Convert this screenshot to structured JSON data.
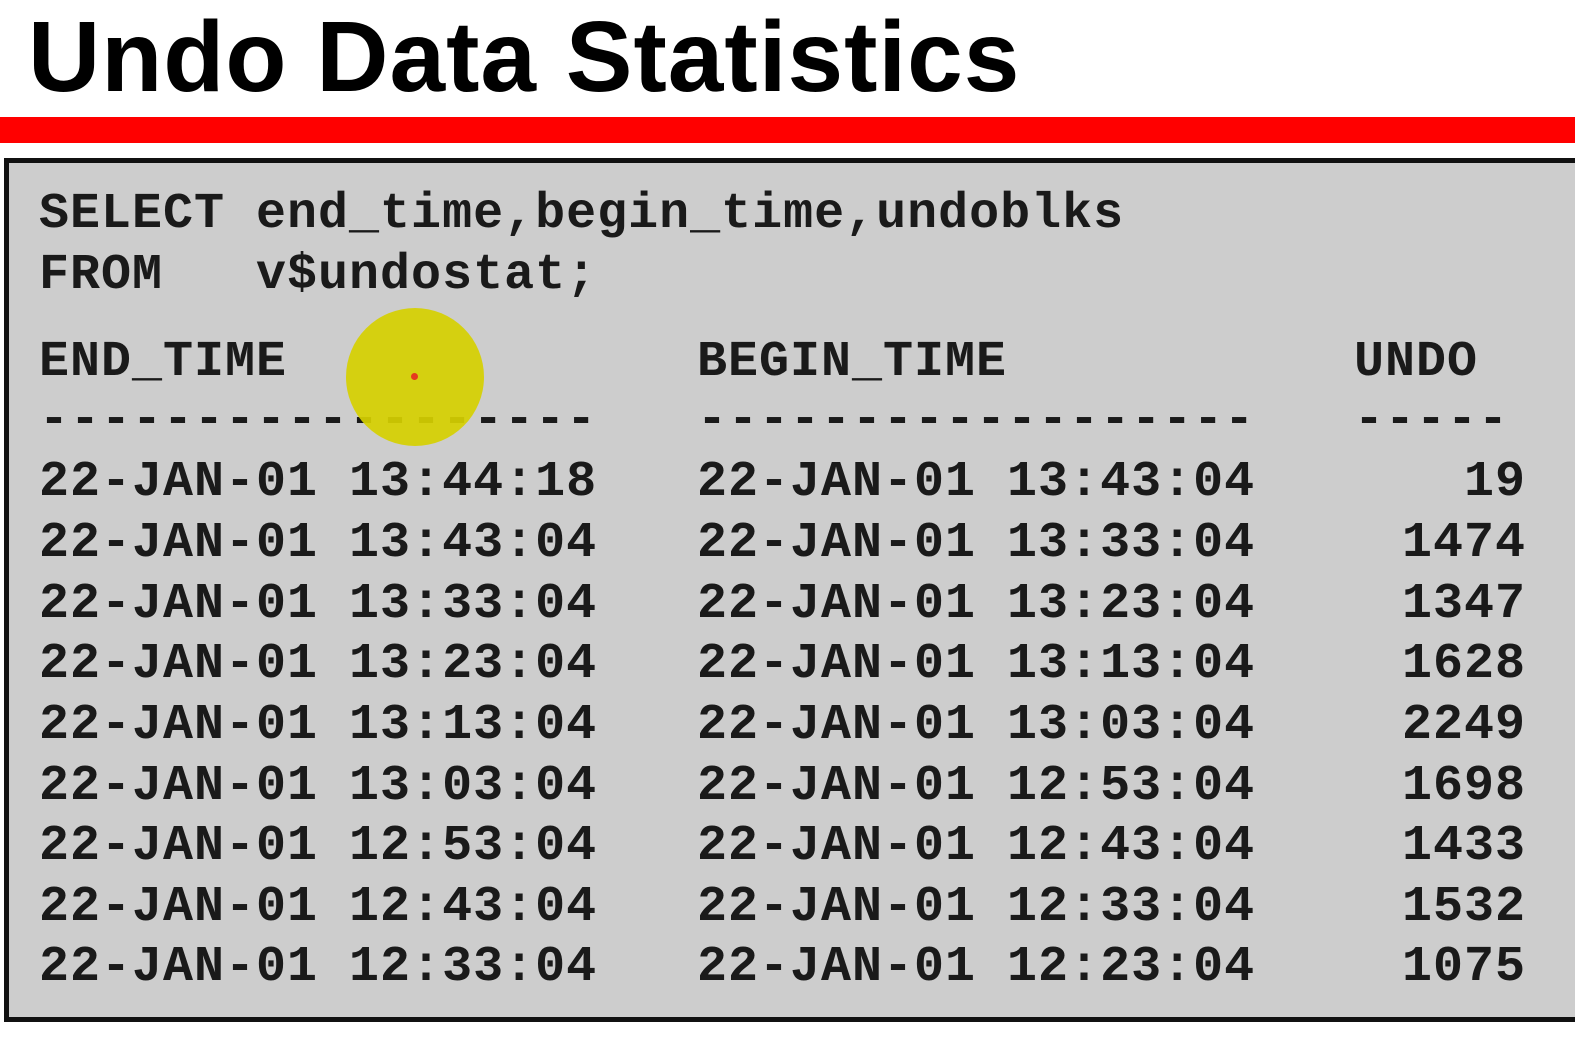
{
  "slide": {
    "title": "Undo Data Statistics",
    "accent_color": "#ff0000",
    "box_color": "#cdcdcd"
  },
  "query": {
    "line1": "SELECT end_time,begin_time,undoblks",
    "line2": "FROM   v$undostat;"
  },
  "result": {
    "headers": {
      "end_time": "END_TIME",
      "begin_time": "BEGIN_TIME",
      "undo": "UNDO"
    },
    "dashes": {
      "end_time": "------------------",
      "begin_time": "------------------",
      "undo": "-----"
    },
    "rows": [
      {
        "end": "22-JAN-01 13:44:18",
        "begin": "22-JAN-01 13:43:04",
        "undo": "19"
      },
      {
        "end": "22-JAN-01 13:43:04",
        "begin": "22-JAN-01 13:33:04",
        "undo": "1474"
      },
      {
        "end": "22-JAN-01 13:33:04",
        "begin": "22-JAN-01 13:23:04",
        "undo": "1347"
      },
      {
        "end": "22-JAN-01 13:23:04",
        "begin": "22-JAN-01 13:13:04",
        "undo": "1628"
      },
      {
        "end": "22-JAN-01 13:13:04",
        "begin": "22-JAN-01 13:03:04",
        "undo": "2249"
      },
      {
        "end": "22-JAN-01 13:03:04",
        "begin": "22-JAN-01 12:53:04",
        "undo": "1698"
      },
      {
        "end": "22-JAN-01 12:53:04",
        "begin": "22-JAN-01 12:43:04",
        "undo": "1433"
      },
      {
        "end": "22-JAN-01 12:43:04",
        "begin": "22-JAN-01 12:33:04",
        "undo": "1532"
      },
      {
        "end": "22-JAN-01 12:33:04",
        "begin": "22-JAN-01 12:23:04",
        "undo": "1075"
      }
    ]
  },
  "cursor": {
    "icon": "cursor-highlight-icon",
    "highlight_color": "#d6d000"
  }
}
